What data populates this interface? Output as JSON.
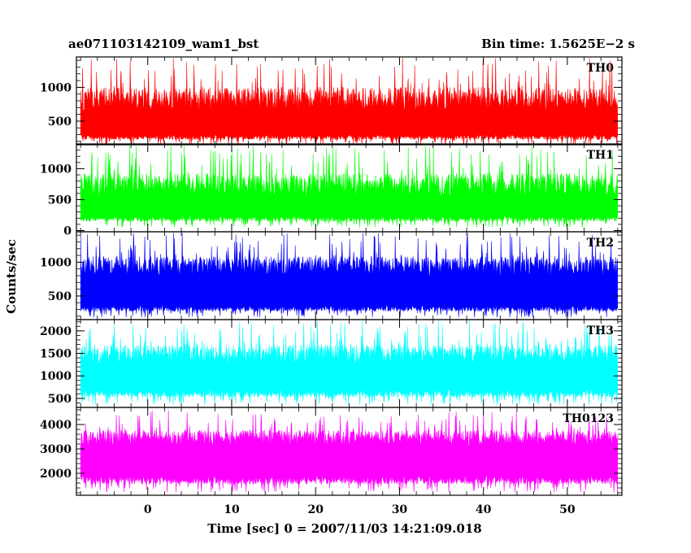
{
  "chart_data": {
    "type": "line",
    "title": "ae071103142109_wam1_bst",
    "subtitle": "Bin time: 1.5625E−2 s",
    "xlabel": "Time [sec] 0 = 2007/11/03 14:21:09.018",
    "ylabel": "Counts/sec",
    "xlim": [
      -8.5,
      56.5
    ],
    "x_range_data": [
      -8,
      56
    ],
    "xticks": [
      0,
      10,
      20,
      30,
      40,
      50
    ],
    "xtick_labels": [
      "0",
      "10",
      "20",
      "30",
      "40",
      "50"
    ],
    "panels": [
      {
        "name": "TH0",
        "color": "#ff0000",
        "ylim": [
          150,
          1450
        ],
        "yticks": [
          500,
          1000
        ],
        "ytick_labels": [
          "500",
          "1000"
        ],
        "band": {
          "base_low": 300,
          "base_high": 640,
          "spike_max": 1450,
          "dip_min": 150
        }
      },
      {
        "name": "TH1",
        "color": "#00ff00",
        "ylim": [
          -20,
          1400
        ],
        "yticks": [
          0,
          500,
          1000
        ],
        "ytick_labels": [
          "0",
          "500",
          "1000"
        ],
        "band": {
          "base_low": 240,
          "base_high": 530,
          "spike_max": 1400,
          "dip_min": 50
        }
      },
      {
        "name": "TH2",
        "color": "#0000ff",
        "ylim": [
          150,
          1450
        ],
        "yticks": [
          500,
          1000
        ],
        "ytick_labels": [
          "500",
          "1000"
        ],
        "band": {
          "base_low": 360,
          "base_high": 790,
          "spike_max": 1450,
          "dip_min": 180
        }
      },
      {
        "name": "TH3",
        "color": "#00ffff",
        "ylim": [
          300,
          2250
        ],
        "yticks": [
          500,
          1000,
          1500,
          2000
        ],
        "ytick_labels": [
          "500",
          "1000",
          "1500",
          "2000"
        ],
        "band": {
          "base_low": 700,
          "base_high": 1250,
          "spike_max": 2250,
          "dip_min": 350
        }
      },
      {
        "name": "TH0123",
        "color": "#ff00ff",
        "ylim": [
          1100,
          4700
        ],
        "yticks": [
          2000,
          3000,
          4000
        ],
        "ytick_labels": [
          "2000",
          "3000",
          "4000"
        ],
        "band": {
          "base_low": 1900,
          "base_high": 3100,
          "spike_max": 4600,
          "dip_min": 1200
        }
      }
    ]
  }
}
